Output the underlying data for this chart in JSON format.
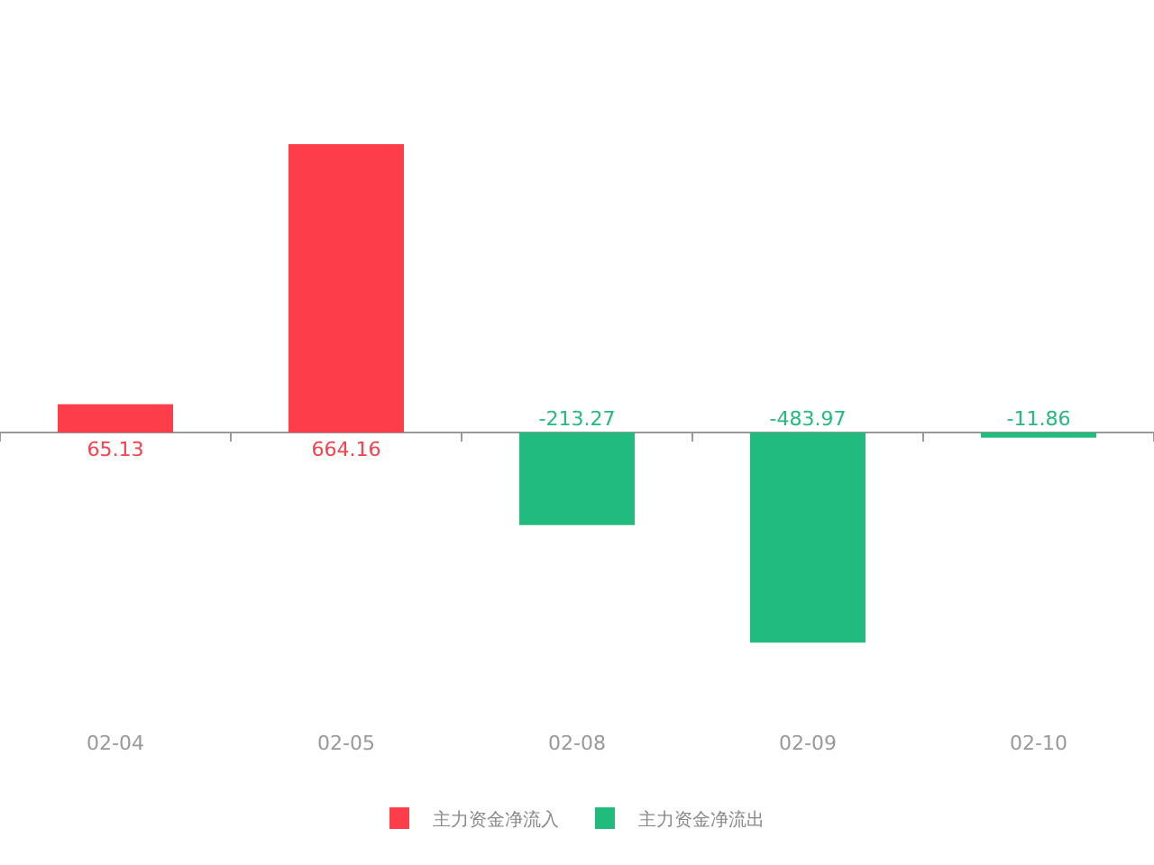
{
  "chart_data": {
    "type": "bar",
    "stacked": true,
    "data_labels": true,
    "legend": "bottom",
    "categories": [
      "02-04",
      "02-05",
      "02-08",
      "02-09",
      "02-10"
    ],
    "series": [
      {
        "name": "主力资金净流入",
        "color": "#fd3e4a",
        "values": [
          65.13,
          664.16,
          null,
          null,
          null
        ]
      },
      {
        "name": "主力资金净流出",
        "color": "#21bb7e",
        "values": [
          null,
          null,
          -213.27,
          -483.97,
          -11.86
        ]
      }
    ]
  }
}
